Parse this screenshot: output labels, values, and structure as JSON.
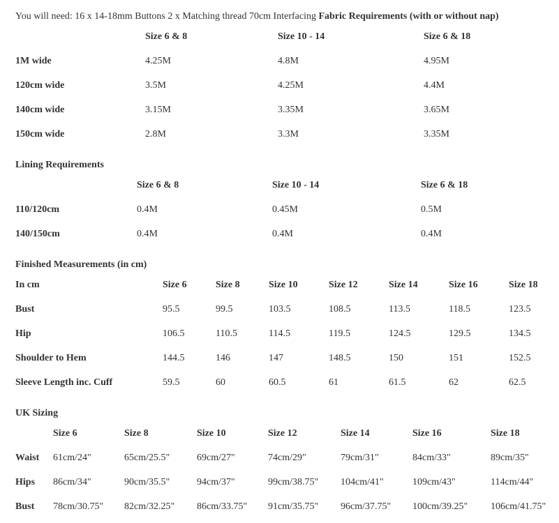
{
  "intro": {
    "text": "You will need: 16 x 14-18mm Buttons 2 x Matching thread 70cm Interfacing",
    "bold": "Fabric Requirements (with or without nap)"
  },
  "fabric": {
    "headers": [
      "Size 6 & 8",
      "Size 10 - 14",
      "Size 6 & 18"
    ],
    "rows": [
      {
        "label": "1M wide",
        "values": [
          "4.25M",
          "4.8M",
          "4.95M"
        ]
      },
      {
        "label": "120cm wide",
        "values": [
          "3.5M",
          "4.25M",
          "4.4M"
        ]
      },
      {
        "label": "140cm wide",
        "values": [
          "3.15M",
          "3.35M",
          "3.65M"
        ]
      },
      {
        "label": "150cm wide",
        "values": [
          "2.8M",
          "3.3M",
          "3.35M"
        ]
      }
    ]
  },
  "lining": {
    "title": "Lining Requirements",
    "headers": [
      "Size 6 & 8",
      "Size 10 - 14",
      "Size 6 & 18"
    ],
    "rows": [
      {
        "label": "110/120cm",
        "values": [
          "0.4M",
          "0.45M",
          "0.5M"
        ]
      },
      {
        "label": "140/150cm",
        "values": [
          "0.4M",
          "0.4M",
          "0.4M"
        ]
      }
    ]
  },
  "finished": {
    "title": "Finished Measurements (in cm)",
    "corner": "In cm",
    "headers": [
      "Size 6",
      "Size 8",
      "Size 10",
      "Size 12",
      "Size 14",
      "Size 16",
      "Size 18"
    ],
    "rows": [
      {
        "label": "Bust",
        "values": [
          95.5,
          99.5,
          103.5,
          108.5,
          113.5,
          118.5,
          123.5
        ]
      },
      {
        "label": "Hip",
        "values": [
          106.5,
          110.5,
          114.5,
          119.5,
          124.5,
          129.5,
          134.5
        ]
      },
      {
        "label": "Shoulder to Hem",
        "values": [
          144.5,
          146,
          147,
          148.5,
          150,
          151,
          152.5
        ]
      },
      {
        "label": "Sleeve Length inc. Cuff",
        "values": [
          59.5,
          60,
          60.5,
          61,
          61.5,
          62,
          62.5
        ]
      }
    ]
  },
  "uk": {
    "title": "UK Sizing",
    "headers": [
      "Size 6",
      "Size 8",
      "Size 10",
      "Size 12",
      "Size 14",
      "Size 16",
      "Size 18"
    ],
    "rows": [
      {
        "label": "Waist",
        "values": [
          "61cm/24\"",
          "65cm/25.5\"",
          "69cm/27\"",
          "74cm/29\"",
          "79cm/31\"",
          "84cm/33\"",
          "89cm/35\""
        ]
      },
      {
        "label": "Hips",
        "values": [
          "86cm/34\"",
          "90cm/35.5\"",
          "94cm/37\"",
          "99cm/38.75\"",
          "104cm/41\"",
          "109cm/43\"",
          "114cm/44\""
        ]
      },
      {
        "label": "Bust",
        "values": [
          "78cm/30.75\"",
          "82cm/32.25\"",
          "86cm/33.75\"",
          "91cm/35.75\"",
          "96cm/37.75\"",
          "100cm/39.25\"",
          "106cm/41.75\""
        ]
      }
    ]
  }
}
